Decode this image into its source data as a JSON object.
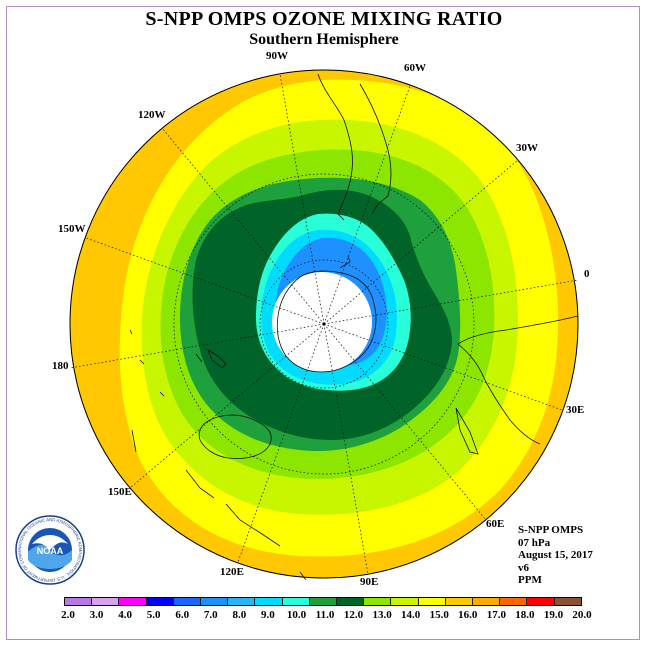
{
  "header": {
    "title": "S-NPP OMPS OZONE MIXING RATIO",
    "subtitle": "Southern Hemisphere"
  },
  "longitude_labels": {
    "w90": "90W",
    "w60": "60W",
    "w30": "30W",
    "e0": "0",
    "e30": "30E",
    "e60": "60E",
    "e90": "90E",
    "e120": "120E",
    "e150": "150E",
    "e180": "180",
    "w150": "150W",
    "w120": "120W"
  },
  "info": {
    "instrument": "S-NPP OMPS",
    "level": "07 hPa",
    "date": "August 15, 2017",
    "version": "v6",
    "units": "PPM"
  },
  "colorbar": {
    "labels": [
      "2.0",
      "3.0",
      "4.0",
      "5.0",
      "6.0",
      "7.0",
      "8.0",
      "9.0",
      "10.0",
      "11.0",
      "12.0",
      "13.0",
      "14.0",
      "15.0",
      "16.0",
      "17.0",
      "18.0",
      "19.0",
      "20.0"
    ],
    "colors": [
      "#b878e8",
      "#d8a0f0",
      "#ff00ff",
      "#0000ff",
      "#1e64ff",
      "#1e90ff",
      "#28b4f8",
      "#00dcff",
      "#28ffd8",
      "#1ea03c",
      "#006428",
      "#8ce600",
      "#c8f500",
      "#ffff00",
      "#ffc800",
      "#ffaa00",
      "#ff6400",
      "#ff0000",
      "#8c5032"
    ]
  },
  "map_colors": {
    "c15": "#ffc800",
    "c14": "#ffff00",
    "c13": "#c8f500",
    "c12": "#8ce600",
    "c11": "#1ea03c",
    "c10": "#006428",
    "c9": "#28ffd8",
    "c8": "#00dcff",
    "c7": "#1e90ff",
    "nodata": "#ffffff"
  },
  "logo": {
    "text": "NOAA",
    "ring_text": "NATIONAL OCEANIC AND ATMOSPHERIC ADMINISTRATION · U.S. DEPARTMENT OF COMMERCE"
  }
}
